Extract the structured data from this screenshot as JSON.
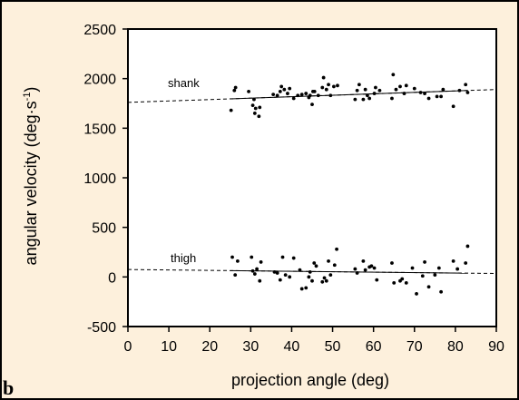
{
  "panel_label": "b",
  "chart_data": {
    "type": "scatter",
    "xlabel": "projection angle (deg)",
    "ylabel": "angular velocity (deg·s",
    "ylabel_sup": "-1",
    "ylabel_close": ")",
    "xlim": [
      0,
      90
    ],
    "ylim": [
      -500,
      2500
    ],
    "xticks": [
      0,
      10,
      20,
      30,
      40,
      50,
      60,
      70,
      80,
      90
    ],
    "yticks": [
      -500,
      0,
      500,
      1000,
      1500,
      2000,
      2500
    ],
    "grid": false,
    "annotations": [
      "shank",
      "thigh"
    ],
    "series": [
      {
        "name": "shank",
        "regression_fit": [
          [
            0,
            1760
          ],
          [
            90,
            1890
          ]
        ],
        "points": [
          [
            25.2,
            1680
          ],
          [
            26.0,
            1880
          ],
          [
            26.3,
            1910
          ],
          [
            29.5,
            1870
          ],
          [
            30.5,
            1730
          ],
          [
            30.8,
            1790
          ],
          [
            31.0,
            1650
          ],
          [
            31.2,
            1700
          ],
          [
            32.0,
            1620
          ],
          [
            32.2,
            1710
          ],
          [
            35.5,
            1840
          ],
          [
            36.5,
            1830
          ],
          [
            37.2,
            1870
          ],
          [
            37.5,
            1920
          ],
          [
            38.2,
            1890
          ],
          [
            39.0,
            1850
          ],
          [
            39.5,
            1900
          ],
          [
            40.5,
            1800
          ],
          [
            41.5,
            1830
          ],
          [
            42.5,
            1840
          ],
          [
            43.5,
            1850
          ],
          [
            44.2,
            1810
          ],
          [
            44.5,
            1830
          ],
          [
            45.0,
            1740
          ],
          [
            45.2,
            1870
          ],
          [
            45.6,
            1870
          ],
          [
            46.5,
            1830
          ],
          [
            47.5,
            1910
          ],
          [
            47.8,
            2010
          ],
          [
            48.5,
            1890
          ],
          [
            49.0,
            1940
          ],
          [
            49.5,
            1830
          ],
          [
            50.3,
            1920
          ],
          [
            51.2,
            1930
          ],
          [
            55.5,
            1790
          ],
          [
            56.0,
            1880
          ],
          [
            56.5,
            1940
          ],
          [
            57.5,
            1790
          ],
          [
            58.0,
            1890
          ],
          [
            58.5,
            1830
          ],
          [
            59.0,
            1800
          ],
          [
            60.2,
            1850
          ],
          [
            60.5,
            1910
          ],
          [
            61.5,
            1880
          ],
          [
            64.5,
            1800
          ],
          [
            64.8,
            2040
          ],
          [
            65.5,
            1890
          ],
          [
            66.5,
            1920
          ],
          [
            67.5,
            1850
          ],
          [
            68.0,
            1930
          ],
          [
            70.0,
            1900
          ],
          [
            71.5,
            1860
          ],
          [
            72.5,
            1850
          ],
          [
            73.5,
            1800
          ],
          [
            75.5,
            1820
          ],
          [
            76.5,
            1820
          ],
          [
            77.0,
            1890
          ],
          [
            79.5,
            1720
          ],
          [
            81.0,
            1880
          ],
          [
            82.5,
            1940
          ],
          [
            83.0,
            1860
          ]
        ]
      },
      {
        "name": "thigh",
        "regression_fit": [
          [
            0,
            75
          ],
          [
            90,
            35
          ]
        ],
        "points": [
          [
            25.5,
            200
          ],
          [
            26.2,
            20
          ],
          [
            26.8,
            160
          ],
          [
            30.2,
            200
          ],
          [
            30.5,
            60
          ],
          [
            31.0,
            30
          ],
          [
            31.5,
            80
          ],
          [
            32.2,
            -40
          ],
          [
            32.5,
            150
          ],
          [
            35.8,
            50
          ],
          [
            36.5,
            40
          ],
          [
            37.2,
            -30
          ],
          [
            37.8,
            200
          ],
          [
            38.5,
            20
          ],
          [
            39.5,
            0
          ],
          [
            40.5,
            190
          ],
          [
            42.0,
            70
          ],
          [
            42.5,
            -120
          ],
          [
            43.5,
            -110
          ],
          [
            44.2,
            0
          ],
          [
            44.5,
            50
          ],
          [
            45.0,
            -40
          ],
          [
            45.5,
            140
          ],
          [
            46.0,
            110
          ],
          [
            47.5,
            -50
          ],
          [
            48.0,
            -10
          ],
          [
            48.5,
            -40
          ],
          [
            49.0,
            160
          ],
          [
            49.5,
            20
          ],
          [
            50.5,
            120
          ],
          [
            51.0,
            280
          ],
          [
            55.5,
            80
          ],
          [
            56.0,
            40
          ],
          [
            57.5,
            160
          ],
          [
            58.0,
            70
          ],
          [
            59.0,
            100
          ],
          [
            59.5,
            110
          ],
          [
            60.2,
            90
          ],
          [
            60.8,
            -30
          ],
          [
            64.5,
            140
          ],
          [
            65.0,
            -60
          ],
          [
            66.5,
            -40
          ],
          [
            67.0,
            -20
          ],
          [
            68.0,
            -60
          ],
          [
            69.5,
            90
          ],
          [
            70.5,
            -170
          ],
          [
            72.0,
            10
          ],
          [
            72.5,
            150
          ],
          [
            73.5,
            -100
          ],
          [
            75.0,
            20
          ],
          [
            76.0,
            90
          ],
          [
            76.5,
            -150
          ],
          [
            79.5,
            160
          ],
          [
            80.5,
            80
          ],
          [
            82.5,
            140
          ],
          [
            83.0,
            310
          ]
        ]
      }
    ]
  }
}
